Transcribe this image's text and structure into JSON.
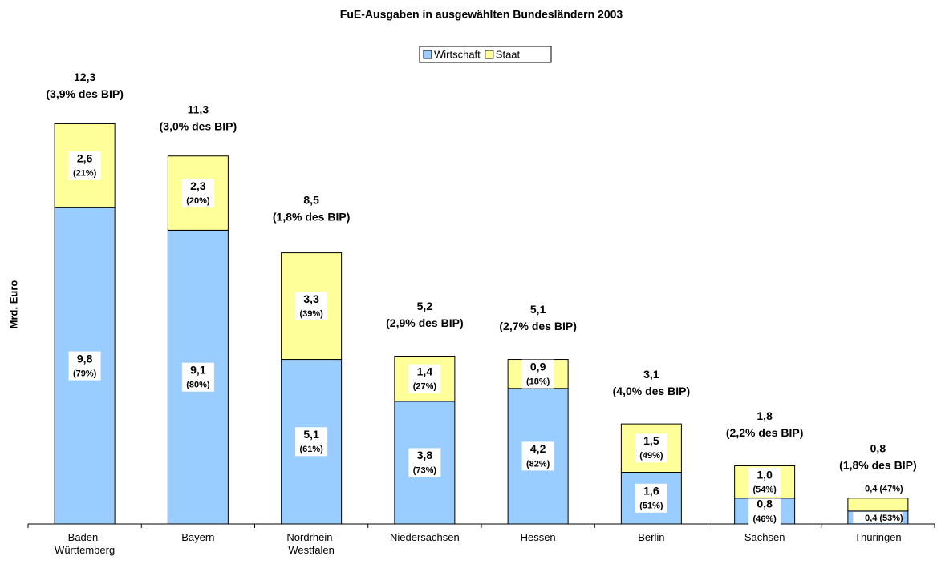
{
  "chart_data": {
    "type": "stacked_bar",
    "title": "FuE-Ausgaben in ausgewählten Bundesländern 2003",
    "y_label": "Mrd. Euro",
    "categories": [
      "Baden-\nWürttemberg",
      "Bayern",
      "Nordrhein-\nWestfalen",
      "Niedersachsen",
      "Hessen",
      "Berlin",
      "Sachsen",
      "Thüringen"
    ],
    "series": [
      {
        "name": "Wirtschaft",
        "color": "#99ccff",
        "values": [
          9.8,
          9.1,
          5.1,
          3.8,
          4.2,
          1.6,
          0.8,
          0.4
        ],
        "value_labels": [
          "9,8",
          "9,1",
          "5,1",
          "3,8",
          "4,2",
          "1,6",
          "0,8",
          "0,4"
        ],
        "share_labels": [
          "(79%)",
          "(80%)",
          "(61%)",
          "(73%)",
          "(82%)",
          "(51%)",
          "(46%)",
          "(53%)"
        ]
      },
      {
        "name": "Staat",
        "color": "#ffff99",
        "values": [
          2.6,
          2.3,
          3.3,
          1.4,
          0.9,
          1.5,
          1.0,
          0.4
        ],
        "value_labels": [
          "2,6",
          "2,3",
          "3,3",
          "1,4",
          "0,9",
          "1,5",
          "1,0",
          "0,4"
        ],
        "share_labels": [
          "(21%)",
          "(20%)",
          "(39%)",
          "(27%)",
          "(18%)",
          "(49%)",
          "(54%)",
          "(47%)"
        ]
      }
    ],
    "totals": {
      "values": [
        12.3,
        11.3,
        8.5,
        5.2,
        5.1,
        3.1,
        1.8,
        0.8
      ],
      "value_labels": [
        "12,3",
        "11,3",
        "8,5",
        "5,2",
        "5,1",
        "3,1",
        "1,8",
        "0,8"
      ],
      "bip_labels": [
        "(3,9% des BIP)",
        "(3,0% des BIP)",
        "(1,8% des BIP)",
        "(2,9% des BIP)",
        "(2,7% des BIP)",
        "(4,0% des BIP)",
        "(2,2% des BIP)",
        "(1,8% des BIP)"
      ]
    },
    "ylim": [
      0,
      14
    ],
    "yticks": [],
    "grid": false,
    "legend": "top"
  }
}
